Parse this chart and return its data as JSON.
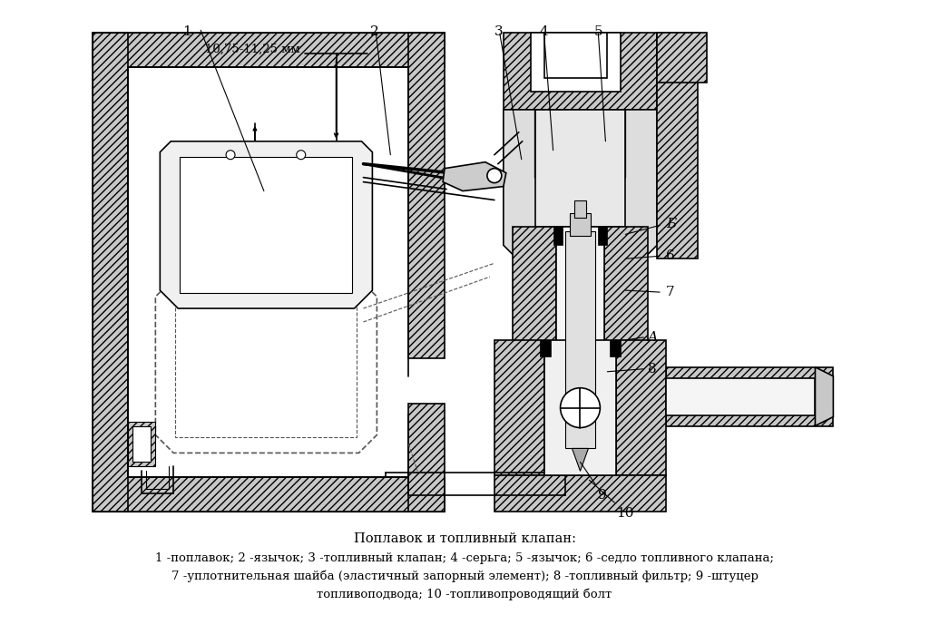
{
  "title": "Поплавок и топливный клапан:",
  "caption_line1": "1 -поплавок; 2 -язычок; 3 -топливный клапан; 4 -серьга; 5 -язычок; 6 -седло топливного клапана;",
  "caption_line2": "7 -уплотнительная шайба (эластичный запорный элемент); 8 -топливный фильтр; 9 -штуцер",
  "caption_line3": "топливоподвода; 10 -топливопроводящий болт",
  "bg_color": "#ffffff",
  "line_color": "#000000",
  "hatch_fc": "#aaaaaa",
  "figsize": [
    10.25,
    6.99
  ],
  "dpi": 100,
  "dim_label": "10,75-11,25 мм"
}
